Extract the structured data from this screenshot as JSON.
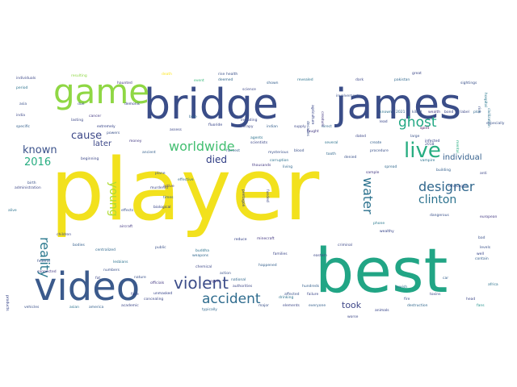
{
  "figure": {
    "type": "wordcloud",
    "background": "#ffffff"
  },
  "words": {
    "major": [
      {
        "text": "player",
        "color": "#f2e11d"
      },
      {
        "text": "best",
        "color": "#21a585"
      },
      {
        "text": "bridge",
        "color": "#3a4d88"
      },
      {
        "text": "james",
        "color": "#3a4d88"
      },
      {
        "text": "game",
        "color": "#8fd744"
      },
      {
        "text": "video",
        "color": "#3b5a8c"
      },
      {
        "text": "violent",
        "color": "#3d4e8a"
      },
      {
        "text": "accident",
        "color": "#2f6c8e"
      },
      {
        "text": "worldwide",
        "color": "#43bf71"
      },
      {
        "text": "live",
        "color": "#27ad81"
      },
      {
        "text": "designer",
        "color": "#31688e"
      },
      {
        "text": "clinton",
        "color": "#2c728e"
      },
      {
        "text": "reality",
        "color": "#2a788e"
      },
      {
        "text": "ghost",
        "color": "#22a884"
      },
      {
        "text": "water",
        "color": "#2c728e"
      },
      {
        "text": "young",
        "color": "#addc30"
      },
      {
        "text": "known",
        "color": "#3b528b"
      },
      {
        "text": "cause",
        "color": "#3e4989"
      },
      {
        "text": "2016",
        "color": "#27ad81"
      },
      {
        "text": "died",
        "color": "#2d3b83"
      },
      {
        "text": "took",
        "color": "#3f4788"
      },
      {
        "text": "later",
        "color": "#3e4989"
      },
      {
        "text": "individual",
        "color": "#35608d"
      }
    ],
    "minor": [
      {
        "text": "individuals",
        "color": "#3e4989"
      },
      {
        "text": "resulting",
        "color": "#8fd744"
      },
      {
        "text": "haunted",
        "color": "#443983"
      },
      {
        "text": "mental",
        "color": "#27ad81"
      },
      {
        "text": "health",
        "color": "#3b528b"
      },
      {
        "text": "death",
        "color": "#fde725"
      },
      {
        "text": "hospital",
        "color": "#2a788e"
      },
      {
        "text": "deemed",
        "color": "#31688e"
      },
      {
        "text": "including",
        "color": "#3e4989"
      },
      {
        "text": "revealed",
        "color": "#2c728e"
      },
      {
        "text": "event",
        "color": "#35b779"
      },
      {
        "text": "rise",
        "color": "#3b528b"
      },
      {
        "text": "great",
        "color": "#3e4989"
      },
      {
        "text": "lead",
        "color": "#2d3b83"
      },
      {
        "text": "direct",
        "color": "#31688e"
      },
      {
        "text": "spirit",
        "color": "#440154"
      },
      {
        "text": "large",
        "color": "#3b528b"
      },
      {
        "text": "create",
        "color": "#35608d"
      },
      {
        "text": "phone",
        "color": "#2a788e"
      },
      {
        "text": "wealthy",
        "color": "#2d3b83"
      },
      {
        "text": "criminal",
        "color": "#3e4989"
      },
      {
        "text": "dangerous",
        "color": "#3b528b"
      },
      {
        "text": "european",
        "color": "#443983"
      },
      {
        "text": "sightings",
        "color": "#3b528b"
      },
      {
        "text": "fans",
        "color": "#21918c"
      },
      {
        "text": "head",
        "color": "#3e4989"
      },
      {
        "text": "toxins",
        "color": "#3e4989"
      },
      {
        "text": "contain",
        "color": "#35608d"
      },
      {
        "text": "africa",
        "color": "#2c728e"
      },
      {
        "text": "bad",
        "color": "#3b528b"
      },
      {
        "text": "levels",
        "color": "#3b528b"
      },
      {
        "text": "well",
        "color": "#2d3b83"
      },
      {
        "text": "anti",
        "color": "#3e4989"
      },
      {
        "text": "building",
        "color": "#35608d"
      },
      {
        "text": "vampire",
        "color": "#2c728e"
      },
      {
        "text": "spread",
        "color": "#31688e"
      },
      {
        "text": "sample",
        "color": "#443983"
      },
      {
        "text": "languages",
        "color": "#3b528b"
      },
      {
        "text": "animals",
        "color": "#2d3b83"
      },
      {
        "text": "worse",
        "color": "#3e4989"
      },
      {
        "text": "everyone",
        "color": "#35608d"
      },
      {
        "text": "elements",
        "color": "#3e4989"
      },
      {
        "text": "major",
        "color": "#3b528b"
      },
      {
        "text": "drinking",
        "color": "#2c728e"
      },
      {
        "text": "authorities",
        "color": "#3e4989"
      },
      {
        "text": "national",
        "color": "#31688e"
      },
      {
        "text": "action",
        "color": "#3b528b"
      },
      {
        "text": "minecraft",
        "color": "#443983"
      },
      {
        "text": "reduce",
        "color": "#2d3b83"
      },
      {
        "text": "families",
        "color": "#3e4989"
      },
      {
        "text": "happened",
        "color": "#35608d"
      },
      {
        "text": "chemical",
        "color": "#3e4989"
      },
      {
        "text": "public",
        "color": "#3b528b"
      },
      {
        "text": "buddha",
        "color": "#2c728e"
      },
      {
        "text": "weapons",
        "color": "#31688e"
      },
      {
        "text": "nature",
        "color": "#3b528b"
      },
      {
        "text": "officials",
        "color": "#443983"
      },
      {
        "text": "unmasked",
        "color": "#2d3b83"
      },
      {
        "text": "concealing",
        "color": "#3e4989"
      },
      {
        "text": "america",
        "color": "#35608d"
      },
      {
        "text": "academic",
        "color": "#3e4989"
      },
      {
        "text": "vehicles",
        "color": "#3b528b"
      },
      {
        "text": "asian",
        "color": "#2c728e"
      },
      {
        "text": "typically",
        "color": "#31688e"
      },
      {
        "text": "federal",
        "color": "#3b528b"
      },
      {
        "text": "connected",
        "color": "#443983"
      },
      {
        "text": "products",
        "color": "#2d3b83"
      },
      {
        "text": "children",
        "color": "#3e4989"
      },
      {
        "text": "bodies",
        "color": "#35608d"
      },
      {
        "text": "fat",
        "color": "#3e4989"
      },
      {
        "text": "numbers",
        "color": "#3b528b"
      },
      {
        "text": "lesbians",
        "color": "#2c728e"
      },
      {
        "text": "centralized",
        "color": "#31688e"
      },
      {
        "text": "effects",
        "color": "#3b528b"
      },
      {
        "text": "aircraft",
        "color": "#443983"
      },
      {
        "text": "biological",
        "color": "#2d3b83"
      },
      {
        "text": "murdered",
        "color": "#3e4989"
      },
      {
        "text": "times",
        "color": "#35608d"
      },
      {
        "text": "administration",
        "color": "#3e4989"
      },
      {
        "text": "birth",
        "color": "#3b528b"
      },
      {
        "text": "alive",
        "color": "#2c728e"
      },
      {
        "text": "effective",
        "color": "#31688e"
      },
      {
        "text": "plane",
        "color": "#3b528b"
      },
      {
        "text": "active",
        "color": "#443983"
      },
      {
        "text": "pentagon",
        "color": "#2d3b83"
      },
      {
        "text": "funded",
        "color": "#3e4989"
      },
      {
        "text": "harvest",
        "color": "#35608d"
      },
      {
        "text": "scientists",
        "color": "#3e4989"
      },
      {
        "text": "mysterious",
        "color": "#3b528b"
      },
      {
        "text": "corruption",
        "color": "#2c728e"
      },
      {
        "text": "living",
        "color": "#31688e"
      },
      {
        "text": "blood",
        "color": "#3b528b"
      },
      {
        "text": "thousands",
        "color": "#443983"
      },
      {
        "text": "fluoride",
        "color": "#2d3b83"
      },
      {
        "text": "therapy",
        "color": "#3e4989"
      },
      {
        "text": "indian",
        "color": "#35608d"
      },
      {
        "text": "supply",
        "color": "#3e4989"
      },
      {
        "text": "decades",
        "color": "#3b528b"
      },
      {
        "text": "agents",
        "color": "#2c728e"
      },
      {
        "text": "blue",
        "color": "#31688e"
      },
      {
        "text": "powers",
        "color": "#3b528b"
      },
      {
        "text": "money",
        "color": "#443983"
      },
      {
        "text": "extremely",
        "color": "#2d3b83"
      },
      {
        "text": "lasting",
        "color": "#3e4989"
      },
      {
        "text": "specific",
        "color": "#35608d"
      },
      {
        "text": "india",
        "color": "#3e4989"
      },
      {
        "text": "asia",
        "color": "#3b528b"
      },
      {
        "text": "period",
        "color": "#2c728e"
      },
      {
        "text": "pakistan",
        "color": "#31688e"
      },
      {
        "text": "involvement",
        "color": "#3b528b"
      },
      {
        "text": "creature",
        "color": "#443983"
      },
      {
        "text": "agriculture",
        "color": "#2d3b83"
      },
      {
        "text": "science",
        "color": "#3e4989"
      },
      {
        "text": "shown",
        "color": "#35608d"
      },
      {
        "text": "dark",
        "color": "#3e4989"
      },
      {
        "text": "rich",
        "color": "#3b528b"
      },
      {
        "text": "civilization",
        "color": "#2c728e"
      },
      {
        "text": "plot",
        "color": "#31688e"
      },
      {
        "text": "especially",
        "color": "#3b528b"
      },
      {
        "text": "cancer",
        "color": "#443983"
      },
      {
        "text": "demonic",
        "color": "#2d3b83"
      },
      {
        "text": "assess",
        "color": "#3e4989"
      },
      {
        "text": "ancient",
        "color": "#35608d"
      },
      {
        "text": "beginning",
        "color": "#3e4989"
      },
      {
        "text": "procedure",
        "color": "#3b528b"
      },
      {
        "text": "several",
        "color": "#2c728e"
      },
      {
        "text": "tooth",
        "color": "#31688e"
      },
      {
        "text": "denied",
        "color": "#3b528b"
      },
      {
        "text": "fought",
        "color": "#443983"
      },
      {
        "text": "infected",
        "color": "#2d3b83"
      },
      {
        "text": "eastern",
        "color": "#3e4989"
      },
      {
        "text": "hundreds",
        "color": "#35608d"
      },
      {
        "text": "failure",
        "color": "#3e4989"
      },
      {
        "text": "fire",
        "color": "#3b528b"
      },
      {
        "text": "jewish",
        "color": "#2c728e"
      },
      {
        "text": "destruction",
        "color": "#31688e"
      },
      {
        "text": "affected",
        "color": "#3b528b"
      },
      {
        "text": "eyes",
        "color": "#443983"
      },
      {
        "text": "face",
        "color": "#2d3b83"
      },
      {
        "text": "dated",
        "color": "#3e4989"
      },
      {
        "text": "car",
        "color": "#35608d"
      },
      {
        "text": "2018",
        "color": "#3e4989"
      },
      {
        "text": "due",
        "color": "#3b528b"
      },
      {
        "text": "known",
        "color": "#2c728e"
      },
      {
        "text": "2021",
        "color": "#31688e"
      },
      {
        "text": "killed",
        "color": "#3b528b"
      },
      {
        "text": "wealth",
        "color": "#443983"
      },
      {
        "text": "bond",
        "color": "#2d3b83"
      },
      {
        "text": "label",
        "color": "#3e4989"
      }
    ]
  }
}
